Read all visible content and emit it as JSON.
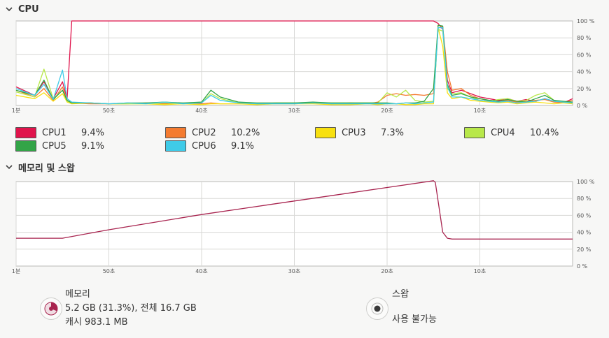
{
  "cpu_section": {
    "title": "CPU",
    "legend": [
      {
        "name": "CPU1",
        "value": "9.4%",
        "color": "#e0144c"
      },
      {
        "name": "CPU2",
        "value": "10.2%",
        "color": "#f47b30"
      },
      {
        "name": "CPU3",
        "value": "7.3%",
        "color": "#f8e00f"
      },
      {
        "name": "CPU4",
        "value": "10.4%",
        "color": "#b8e84a"
      },
      {
        "name": "CPU5",
        "value": "9.1%",
        "color": "#33a447"
      },
      {
        "name": "CPU6",
        "value": "9.1%",
        "color": "#3fcbe8"
      }
    ]
  },
  "memory_section": {
    "title": "메모리 및 스왑",
    "memory": {
      "label": "메모리",
      "usage": "5.2 GB (31.3%), 전체 16.7 GB",
      "cache": "캐시 983.1 MB",
      "pie_fraction": 0.313
    },
    "swap": {
      "label": "스왑",
      "status": "사용 불가능"
    }
  },
  "axis": {
    "x_labels": [
      "1분",
      "50초",
      "40초",
      "30초",
      "20초",
      "10초"
    ],
    "y_labels": [
      "100 %",
      "80 %",
      "60 %",
      "40 %",
      "20 %",
      "0 %"
    ]
  },
  "chart_data": [
    {
      "type": "line",
      "title": "CPU",
      "xlabel": "",
      "ylabel": "",
      "x": [
        60,
        58,
        57,
        56,
        55,
        54.5,
        54,
        52,
        50,
        48,
        46,
        44,
        42,
        40,
        39,
        38,
        36,
        34,
        32,
        30,
        28,
        26,
        24,
        22,
        21,
        20,
        19,
        18,
        17,
        16,
        15,
        14.5,
        14,
        13.5,
        13,
        12,
        11,
        10,
        9,
        8,
        7,
        6,
        5,
        4,
        3,
        2,
        1,
        0
      ],
      "ylim": [
        0,
        100
      ],
      "grid": true,
      "series": [
        {
          "name": "CPU1",
          "values": [
            22,
            12,
            28,
            8,
            28,
            8,
            100,
            100,
            100,
            100,
            100,
            100,
            100,
            100,
            100,
            100,
            100,
            100,
            100,
            100,
            100,
            100,
            100,
            100,
            100,
            100,
            100,
            100,
            100,
            100,
            100,
            97,
            90,
            30,
            15,
            18,
            14,
            10,
            8,
            6,
            8,
            5,
            7,
            5,
            8,
            5,
            3,
            8
          ]
        },
        {
          "name": "CPU2",
          "values": [
            18,
            10,
            20,
            6,
            22,
            6,
            3,
            2,
            2,
            2,
            3,
            2,
            2,
            2,
            3,
            2,
            2,
            2,
            2,
            2,
            3,
            2,
            3,
            2,
            4,
            12,
            14,
            12,
            13,
            12,
            14,
            95,
            93,
            40,
            18,
            20,
            12,
            8,
            6,
            5,
            6,
            4,
            5,
            6,
            7,
            4,
            3,
            6
          ]
        },
        {
          "name": "CPU3",
          "values": [
            12,
            8,
            15,
            5,
            14,
            4,
            2,
            3,
            2,
            2,
            2,
            1,
            2,
            1,
            2,
            2,
            2,
            1,
            2,
            2,
            2,
            1,
            1,
            2,
            1,
            2,
            2,
            1,
            1,
            2,
            2,
            92,
            70,
            15,
            8,
            10,
            6,
            5,
            4,
            3,
            4,
            2,
            3,
            4,
            3,
            2,
            3,
            2
          ]
        },
        {
          "name": "CPU4",
          "values": [
            16,
            10,
            43,
            8,
            18,
            5,
            3,
            3,
            2,
            2,
            2,
            3,
            2,
            3,
            14,
            8,
            3,
            2,
            3,
            3,
            3,
            3,
            3,
            3,
            3,
            15,
            10,
            18,
            6,
            4,
            5,
            90,
            88,
            20,
            14,
            15,
            10,
            6,
            5,
            7,
            8,
            5,
            6,
            12,
            15,
            6,
            4,
            3
          ]
        },
        {
          "name": "CPU5",
          "values": [
            18,
            12,
            30,
            7,
            18,
            6,
            3,
            3,
            2,
            3,
            3,
            4,
            3,
            4,
            18,
            10,
            4,
            3,
            3,
            3,
            4,
            3,
            3,
            3,
            3,
            3,
            2,
            3,
            3,
            5,
            20,
            95,
            94,
            25,
            12,
            14,
            10,
            8,
            6,
            5,
            7,
            5,
            4,
            8,
            12,
            6,
            5,
            4
          ]
        },
        {
          "name": "CPU6",
          "values": [
            20,
            12,
            25,
            7,
            42,
            8,
            4,
            3,
            2,
            3,
            2,
            4,
            2,
            3,
            12,
            6,
            3,
            2,
            2,
            2,
            3,
            2,
            2,
            2,
            2,
            2,
            2,
            3,
            2,
            3,
            4,
            92,
            92,
            22,
            10,
            10,
            8,
            6,
            5,
            4,
            5,
            3,
            4,
            5,
            8,
            5,
            4,
            3
          ]
        }
      ]
    },
    {
      "type": "line",
      "title": "메모리 및 스왑",
      "xlabel": "",
      "ylabel": "",
      "x": [
        60,
        55,
        50,
        45,
        40,
        35,
        30,
        25,
        20,
        15,
        14.8,
        14,
        13.5,
        13,
        12,
        10,
        5,
        0
      ],
      "ylim": [
        0,
        100
      ],
      "grid": true,
      "series": [
        {
          "name": "메모리",
          "values": [
            33,
            33,
            43,
            52,
            61,
            69,
            77,
            85,
            93,
            101,
            99,
            40,
            33,
            32,
            32,
            32,
            32,
            32
          ]
        }
      ]
    }
  ],
  "colors": {
    "memory_line": "#a8244f",
    "grid": "#d8d8d6",
    "plot_bg": "#ffffff"
  }
}
